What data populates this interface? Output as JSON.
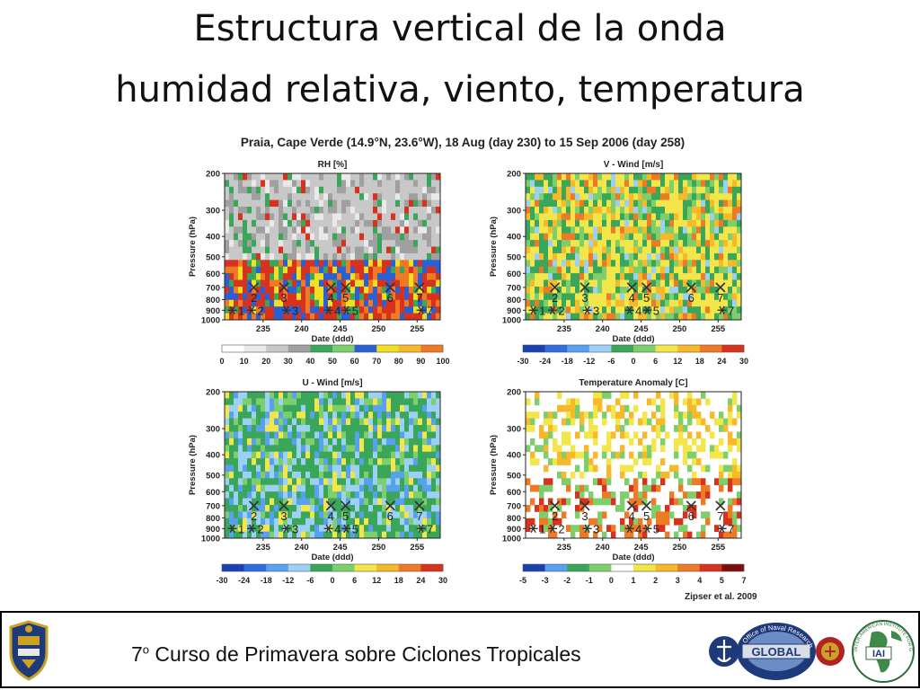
{
  "slide": {
    "title_line1": "Estructura vertical de la onda",
    "title_line2": "humidad relativa, viento, temperatura",
    "footer_num": "7",
    "footer_sup": "o",
    "footer_rest": " Curso de Primavera sobre Ciclones Tropicales",
    "credit": "Zipser et al. 2009"
  },
  "figure_title": "Praia, Cape Verde (14.9°N, 23.6°W), 18 Aug (day 230) to 15 Sep 2006 (day 258)",
  "logos": {
    "left_name": "naval-academy-seal",
    "global_ring": "Office of Naval Research · Science & Technology",
    "global_center": "GLOBAL",
    "iai_center": "IAI",
    "iai_ring": "INTER-AMERICAN INSTITUTE FOR GLOBAL CHANGE RESEARCH"
  },
  "chart_data": [
    {
      "type": "heatmap",
      "title": "RH [%]",
      "xlabel": "Date (ddd)",
      "ylabel": "Pressure (hPa)",
      "xlim": [
        230,
        258
      ],
      "ylim": [
        1000,
        200
      ],
      "yscale": "log",
      "xticks": [
        235,
        240,
        245,
        250,
        255
      ],
      "yticks": [
        200,
        300,
        400,
        500,
        600,
        700,
        800,
        900,
        1000
      ],
      "colorbar": {
        "ticks": [
          0,
          10,
          20,
          30,
          40,
          50,
          60,
          70,
          80,
          90,
          100
        ],
        "colors": [
          "#ffffff",
          "#e9e9e9",
          "#c8c8c8",
          "#a0a0a0",
          "#3aa65a",
          "#7ccf6a",
          "#2b5fd6",
          "#f0e020",
          "#f7b82a",
          "#ef7a25",
          "#d8321e"
        ]
      },
      "wave_markers": [
        {
          "label": "1",
          "trough_day": null,
          "star_day": 231.0
        },
        {
          "label": "2",
          "trough_day": 233.8,
          "star_day": 233.5
        },
        {
          "label": "3",
          "trough_day": 237.7,
          "star_day": 238.0
        },
        {
          "label": "4",
          "trough_day": 243.8,
          "star_day": 243.5
        },
        {
          "label": "5",
          "trough_day": 245.7,
          "star_day": 245.8
        },
        {
          "label": "6",
          "trough_day": 251.5,
          "star_day": null
        },
        {
          "label": "7",
          "trough_day": 255.3,
          "star_day": 255.5
        }
      ]
    },
    {
      "type": "heatmap",
      "title": "V - Wind [m/s]",
      "xlabel": "Date (ddd)",
      "ylabel": "Pressure (hPa)",
      "xlim": [
        230,
        258
      ],
      "ylim": [
        1000,
        200
      ],
      "yscale": "log",
      "xticks": [
        235,
        240,
        245,
        250,
        255
      ],
      "yticks": [
        200,
        300,
        400,
        500,
        600,
        700,
        800,
        900,
        1000
      ],
      "colorbar": {
        "ticks": [
          -30,
          -24,
          -18,
          -12,
          -6,
          0,
          6,
          12,
          18,
          24,
          30
        ],
        "colors": [
          "#1a3fb0",
          "#2f6de0",
          "#58a0f0",
          "#9dd0f5",
          "#3aa65a",
          "#7ccf6a",
          "#f3e64a",
          "#f7b82a",
          "#ef7a25",
          "#d8321e",
          "#7a0f10"
        ]
      },
      "wave_markers": [
        {
          "label": "1",
          "trough_day": null,
          "star_day": 231.0
        },
        {
          "label": "2",
          "trough_day": 233.8,
          "star_day": 233.5
        },
        {
          "label": "3",
          "trough_day": 237.7,
          "star_day": 238.0
        },
        {
          "label": "4",
          "trough_day": 243.8,
          "star_day": 243.5
        },
        {
          "label": "5",
          "trough_day": 245.7,
          "star_day": 245.8
        },
        {
          "label": "6",
          "trough_day": 251.5,
          "star_day": null
        },
        {
          "label": "7",
          "trough_day": 255.3,
          "star_day": 255.5
        }
      ]
    },
    {
      "type": "heatmap",
      "title": "U - Wind [m/s]",
      "xlabel": "Date (ddd)",
      "ylabel": "Pressure (hPa)",
      "xlim": [
        230,
        258
      ],
      "ylim": [
        1000,
        200
      ],
      "yscale": "log",
      "xticks": [
        235,
        240,
        245,
        250,
        255
      ],
      "yticks": [
        200,
        300,
        400,
        500,
        600,
        700,
        800,
        900,
        1000
      ],
      "colorbar": {
        "ticks": [
          -30,
          -24,
          -18,
          -12,
          -6,
          0,
          6,
          12,
          18,
          24,
          30
        ],
        "colors": [
          "#1a3fb0",
          "#2f6de0",
          "#58a0f0",
          "#9dd0f5",
          "#3aa65a",
          "#7ccf6a",
          "#f3e64a",
          "#f7b82a",
          "#ef7a25",
          "#d8321e",
          "#7a0f10"
        ]
      },
      "wave_markers": [
        {
          "label": "1",
          "trough_day": null,
          "star_day": 231.0
        },
        {
          "label": "2",
          "trough_day": 233.8,
          "star_day": 233.5
        },
        {
          "label": "3",
          "trough_day": 237.7,
          "star_day": 238.0
        },
        {
          "label": "4",
          "trough_day": 243.8,
          "star_day": 243.5
        },
        {
          "label": "5",
          "trough_day": 245.7,
          "star_day": 245.8
        },
        {
          "label": "6",
          "trough_day": 251.5,
          "star_day": null
        },
        {
          "label": "7",
          "trough_day": 255.3,
          "star_day": 255.5
        }
      ]
    },
    {
      "type": "heatmap",
      "title": "Temperature Anomaly [C]",
      "xlabel": "Date (ddd)",
      "ylabel": "Pressure (hPa)",
      "xlim": [
        230,
        258
      ],
      "ylim": [
        1000,
        200
      ],
      "yscale": "log",
      "xticks": [
        235,
        240,
        245,
        250,
        255
      ],
      "yticks": [
        200,
        300,
        400,
        500,
        600,
        700,
        800,
        900,
        1000
      ],
      "colorbar": {
        "ticks": [
          -5,
          -3,
          -2,
          -1,
          0,
          1,
          2,
          3,
          4,
          5,
          7
        ],
        "colors": [
          "#1a3fb0",
          "#58a0f0",
          "#3aa65a",
          "#7ccf6a",
          "#ffffff",
          "#f3e64a",
          "#f7b82a",
          "#ef7a25",
          "#d8321e",
          "#7a0f10",
          "#e070d0"
        ]
      },
      "wave_markers": [
        {
          "label": "1",
          "trough_day": null,
          "star_day": 231.0
        },
        {
          "label": "2",
          "trough_day": 233.8,
          "star_day": 233.5
        },
        {
          "label": "3",
          "trough_day": 237.7,
          "star_day": 238.0
        },
        {
          "label": "4",
          "trough_day": 243.8,
          "star_day": 243.5
        },
        {
          "label": "5",
          "trough_day": 245.7,
          "star_day": 245.8
        },
        {
          "label": "6",
          "trough_day": 251.5,
          "star_day": null
        },
        {
          "label": "7",
          "trough_day": 255.3,
          "star_day": 255.5
        }
      ]
    }
  ]
}
